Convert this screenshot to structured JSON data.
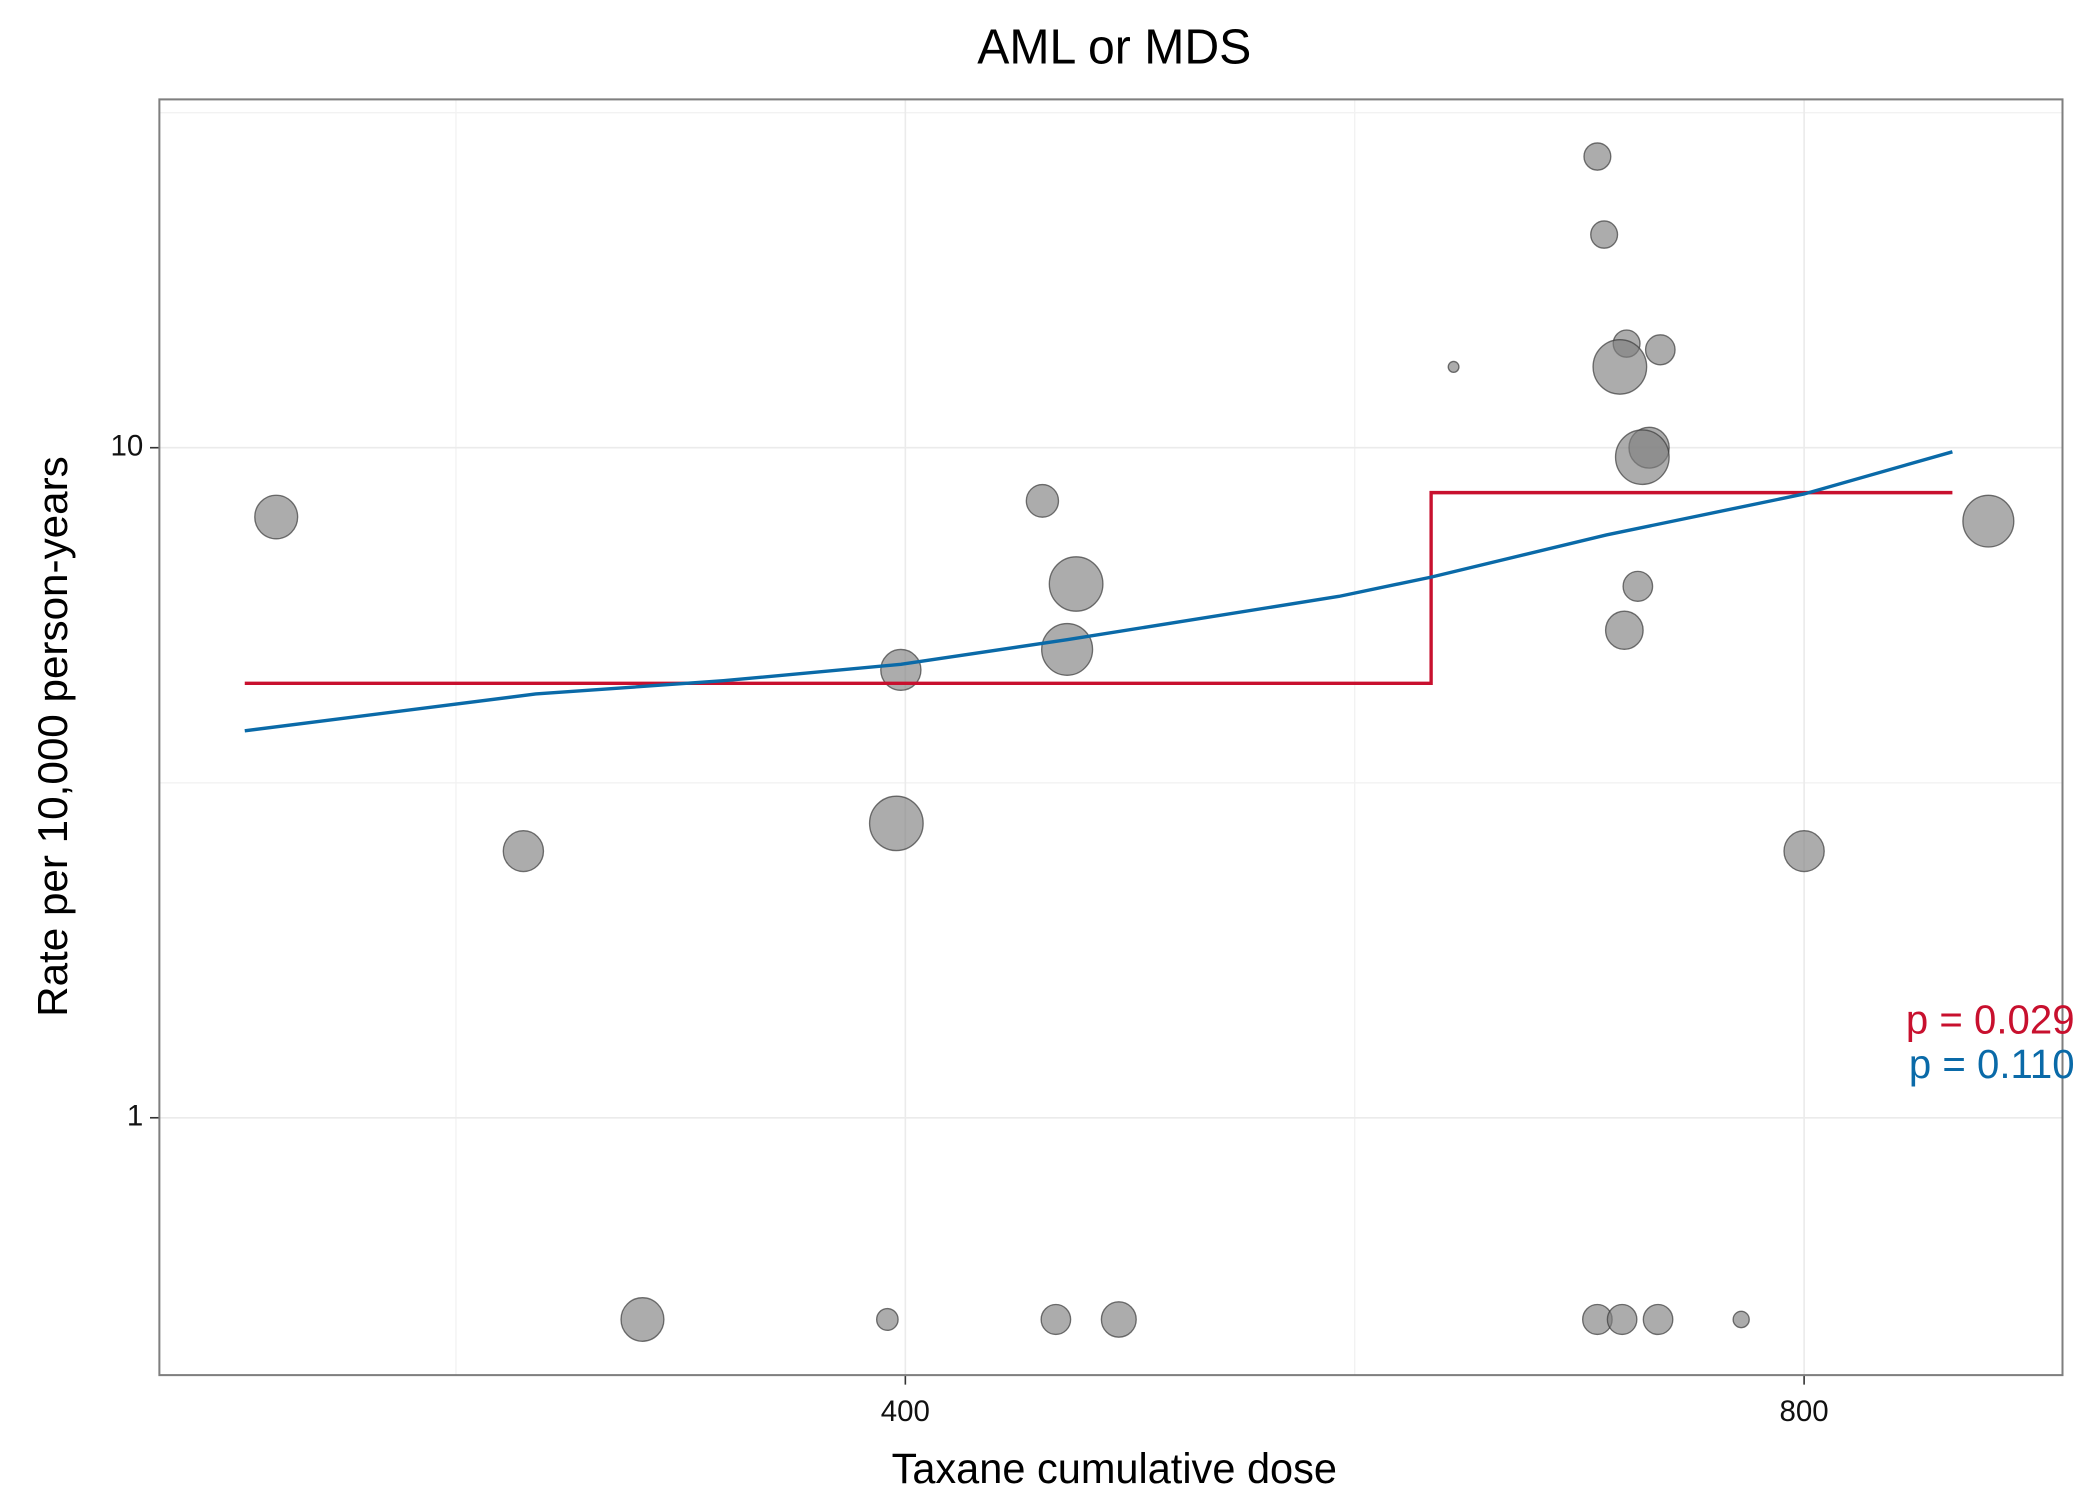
{
  "chart_data": {
    "type": "scatter",
    "title": "AML or MDS",
    "x_label": "Taxane cumulative dose",
    "y_label": "Rate per 10,000 person-years",
    "xlim": [
      68,
      915
    ],
    "ylim": [
      0.413,
      33.1
    ],
    "xticks": [
      400,
      800
    ],
    "yticks": [
      1,
      10
    ],
    "minor_xticks": [
      200,
      600
    ],
    "minor_yticks": [
      3.162,
      31.62
    ],
    "y_log": true,
    "grid": true,
    "points": {
      "color": "#7f7f7f",
      "x": [
        120,
        230,
        283,
        392,
        398,
        396,
        461,
        476,
        472,
        467,
        495,
        644,
        708,
        711,
        721,
        736,
        718,
        731,
        728,
        726,
        720,
        708,
        719,
        735,
        772,
        800,
        882
      ],
      "y": [
        7.88,
        2.5,
        0.5,
        0.5,
        4.66,
        2.75,
        8.33,
        6.26,
        5.0,
        0.5,
        0.5,
        13.2,
        27.2,
        20.8,
        14.3,
        14.0,
        13.2,
        10.0,
        9.68,
        6.21,
        5.34,
        0.5,
        0.5,
        0.5,
        0.5,
        2.5,
        7.77
      ],
      "sizes": [
        16,
        15,
        16,
        8,
        15,
        20,
        12,
        20,
        19,
        11,
        13,
        4,
        10,
        10,
        10,
        11,
        20,
        15,
        20,
        11,
        14,
        11,
        11,
        11,
        6,
        15,
        19
      ]
    },
    "lines": [
      {
        "color": "#c8102e",
        "x": [
          106,
          634,
          634,
          866
        ],
        "y": [
          4.45,
          4.45,
          8.57,
          8.57
        ]
      },
      {
        "color": "#0a6aa8",
        "x": [
          106,
          235.5,
          319,
          398,
          472,
          593,
          634,
          712,
          800,
          866
        ],
        "y": [
          3.78,
          4.29,
          4.49,
          4.75,
          5.17,
          6.0,
          6.41,
          7.41,
          8.53,
          9.86
        ]
      }
    ],
    "annotations": [
      {
        "text": "p = 0.029",
        "color": "#c8102e"
      },
      {
        "text": "p = 0.110",
        "color": "#0a6aa8"
      }
    ]
  }
}
